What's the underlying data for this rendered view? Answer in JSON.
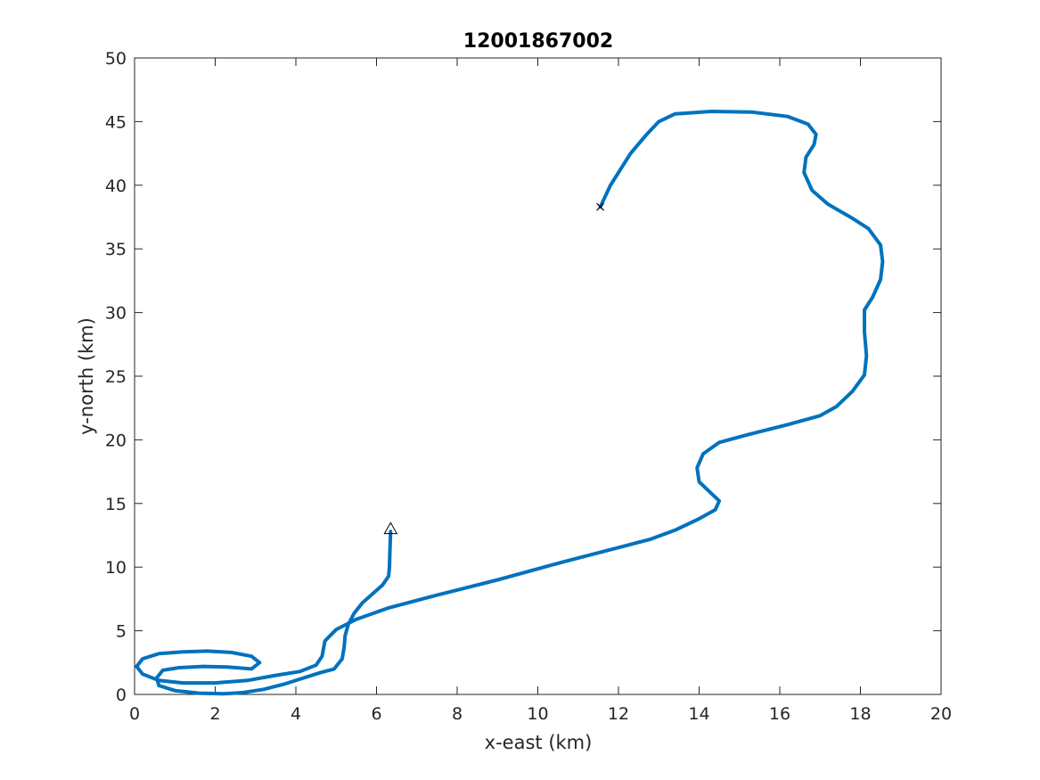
{
  "chart_data": {
    "type": "line",
    "title": "12001867002",
    "xlabel": "x-east (km)",
    "ylabel": "y-north (km)",
    "xlim": [
      0,
      20
    ],
    "ylim": [
      0,
      50
    ],
    "xticks": [
      "0",
      "2",
      "4",
      "6",
      "8",
      "10",
      "12",
      "14",
      "16",
      "18",
      "20"
    ],
    "yticks": [
      "0",
      "5",
      "10",
      "15",
      "20",
      "25",
      "30",
      "35",
      "40",
      "45",
      "50"
    ],
    "grid": false,
    "legend": "none",
    "line_color": "#0072BD",
    "series": [
      {
        "x": [
          6.35,
          6.33,
          6.32,
          6.3,
          6.15,
          5.9,
          5.65,
          5.45,
          5.3,
          5.22,
          5.2,
          5.15,
          4.95,
          4.6,
          4.2,
          3.7,
          3.2,
          3.0,
          2.7,
          2.2,
          1.6,
          1.0,
          0.6,
          0.55,
          0.7,
          1.1,
          1.7,
          2.3,
          2.9,
          3.1,
          2.9,
          2.4,
          1.8,
          1.2,
          0.6,
          0.2,
          0.05,
          0.2,
          0.6,
          1.2,
          2.0,
          2.8,
          3.5,
          4.1,
          4.5,
          4.65,
          4.72,
          5.0,
          5.5,
          6.3,
          7.5,
          9.0,
          10.5,
          12.2,
          12.8,
          13.4,
          14.0,
          14.4,
          14.5,
          14.3,
          14.0,
          13.95,
          14.1,
          14.5,
          15.2,
          16.2,
          17.0,
          17.4,
          17.8,
          18.1,
          18.15,
          18.1,
          18.1,
          18.3,
          18.5,
          18.55,
          18.5,
          18.2,
          17.8,
          17.2,
          16.8,
          16.6,
          16.65,
          16.85,
          16.9,
          16.7,
          16.2,
          15.3,
          14.3,
          13.4,
          13.0,
          12.7,
          12.3,
          11.8,
          11.55
        ],
        "y": [
          12.8,
          11.0,
          10.0,
          9.3,
          8.6,
          7.9,
          7.2,
          6.4,
          5.5,
          4.6,
          3.8,
          2.8,
          2.0,
          1.7,
          1.3,
          0.8,
          0.4,
          0.3,
          0.15,
          0.05,
          0.1,
          0.3,
          0.7,
          1.3,
          1.9,
          2.1,
          2.2,
          2.15,
          2.0,
          2.5,
          3.0,
          3.3,
          3.4,
          3.35,
          3.2,
          2.8,
          2.2,
          1.6,
          1.1,
          0.9,
          0.9,
          1.1,
          1.5,
          1.8,
          2.3,
          3.0,
          4.2,
          5.1,
          5.9,
          6.8,
          7.8,
          9.0,
          10.3,
          11.7,
          12.2,
          12.9,
          13.8,
          14.5,
          15.2,
          15.8,
          16.7,
          17.8,
          18.9,
          19.8,
          20.4,
          21.2,
          21.9,
          22.6,
          23.8,
          25.1,
          26.6,
          28.5,
          30.2,
          31.2,
          32.6,
          34.0,
          35.3,
          36.6,
          37.4,
          38.5,
          39.6,
          41.0,
          42.2,
          43.2,
          44.0,
          44.8,
          45.4,
          45.75,
          45.8,
          45.6,
          45.0,
          44.0,
          42.5,
          40.0,
          38.3
        ]
      }
    ],
    "markers": [
      {
        "symbol": "triangle",
        "x": 6.35,
        "y": 13.0
      },
      {
        "symbol": "x",
        "x": 11.55,
        "y": 38.3
      }
    ]
  }
}
